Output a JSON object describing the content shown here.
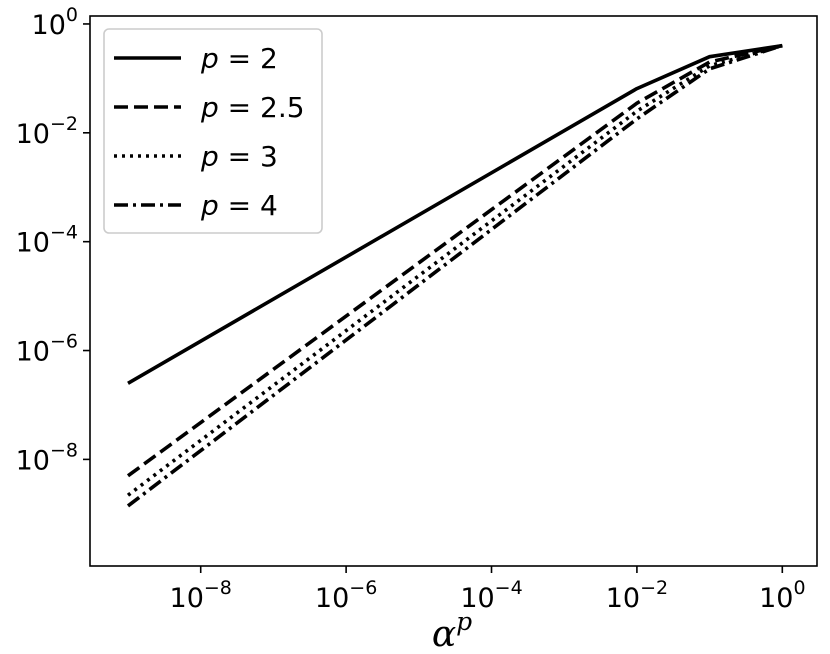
{
  "chart_data": {
    "type": "line",
    "title": "",
    "xlabel_base": "α",
    "xlabel_sup": "p",
    "ylabel": "",
    "x_scale": "log",
    "y_scale": "log",
    "xlim": [
      3e-10,
      3
    ],
    "ylim": [
      1.1e-10,
      1.4
    ],
    "grid": false,
    "legend_position": "top-left",
    "x_ticks": [
      {
        "base": "10",
        "exp": "−8",
        "value": 1e-08
      },
      {
        "base": "10",
        "exp": "−6",
        "value": 1e-06
      },
      {
        "base": "10",
        "exp": "−4",
        "value": 0.0001
      },
      {
        "base": "10",
        "exp": "−2",
        "value": 0.01
      },
      {
        "base": "10",
        "exp": "0",
        "value": 1
      }
    ],
    "y_ticks": [
      {
        "base": "10",
        "exp": "0",
        "value": 1
      },
      {
        "base": "10",
        "exp": "−2",
        "value": 0.01
      },
      {
        "base": "10",
        "exp": "−4",
        "value": 0.0001
      },
      {
        "base": "10",
        "exp": "−6",
        "value": 1e-06
      },
      {
        "base": "10",
        "exp": "−8",
        "value": 1e-08
      }
    ],
    "series": [
      {
        "name": "p = 2",
        "legend_italic": "p",
        "legend_rest": " = 2",
        "style": "solid",
        "x": [
          1e-09,
          0.01,
          0.1,
          1
        ],
        "y": [
          2.5e-07,
          0.065,
          0.25,
          0.4
        ]
      },
      {
        "name": "p = 2.5",
        "legend_italic": "p",
        "legend_rest": " = 2.5",
        "style": "dashed",
        "x": [
          1e-09,
          0.01,
          0.1,
          1
        ],
        "y": [
          5e-09,
          0.035,
          0.2,
          0.4
        ]
      },
      {
        "name": "p = 3",
        "legend_italic": "p",
        "legend_rest": " = 3",
        "style": "dotted",
        "x": [
          1e-09,
          0.01,
          0.1,
          1
        ],
        "y": [
          2.2e-09,
          0.025,
          0.17,
          0.4
        ]
      },
      {
        "name": "p = 4",
        "legend_italic": "p",
        "legend_rest": " = 4",
        "style": "dashdot",
        "x": [
          1e-09,
          0.01,
          0.1,
          1
        ],
        "y": [
          1.4e-09,
          0.018,
          0.15,
          0.4
        ]
      }
    ]
  }
}
